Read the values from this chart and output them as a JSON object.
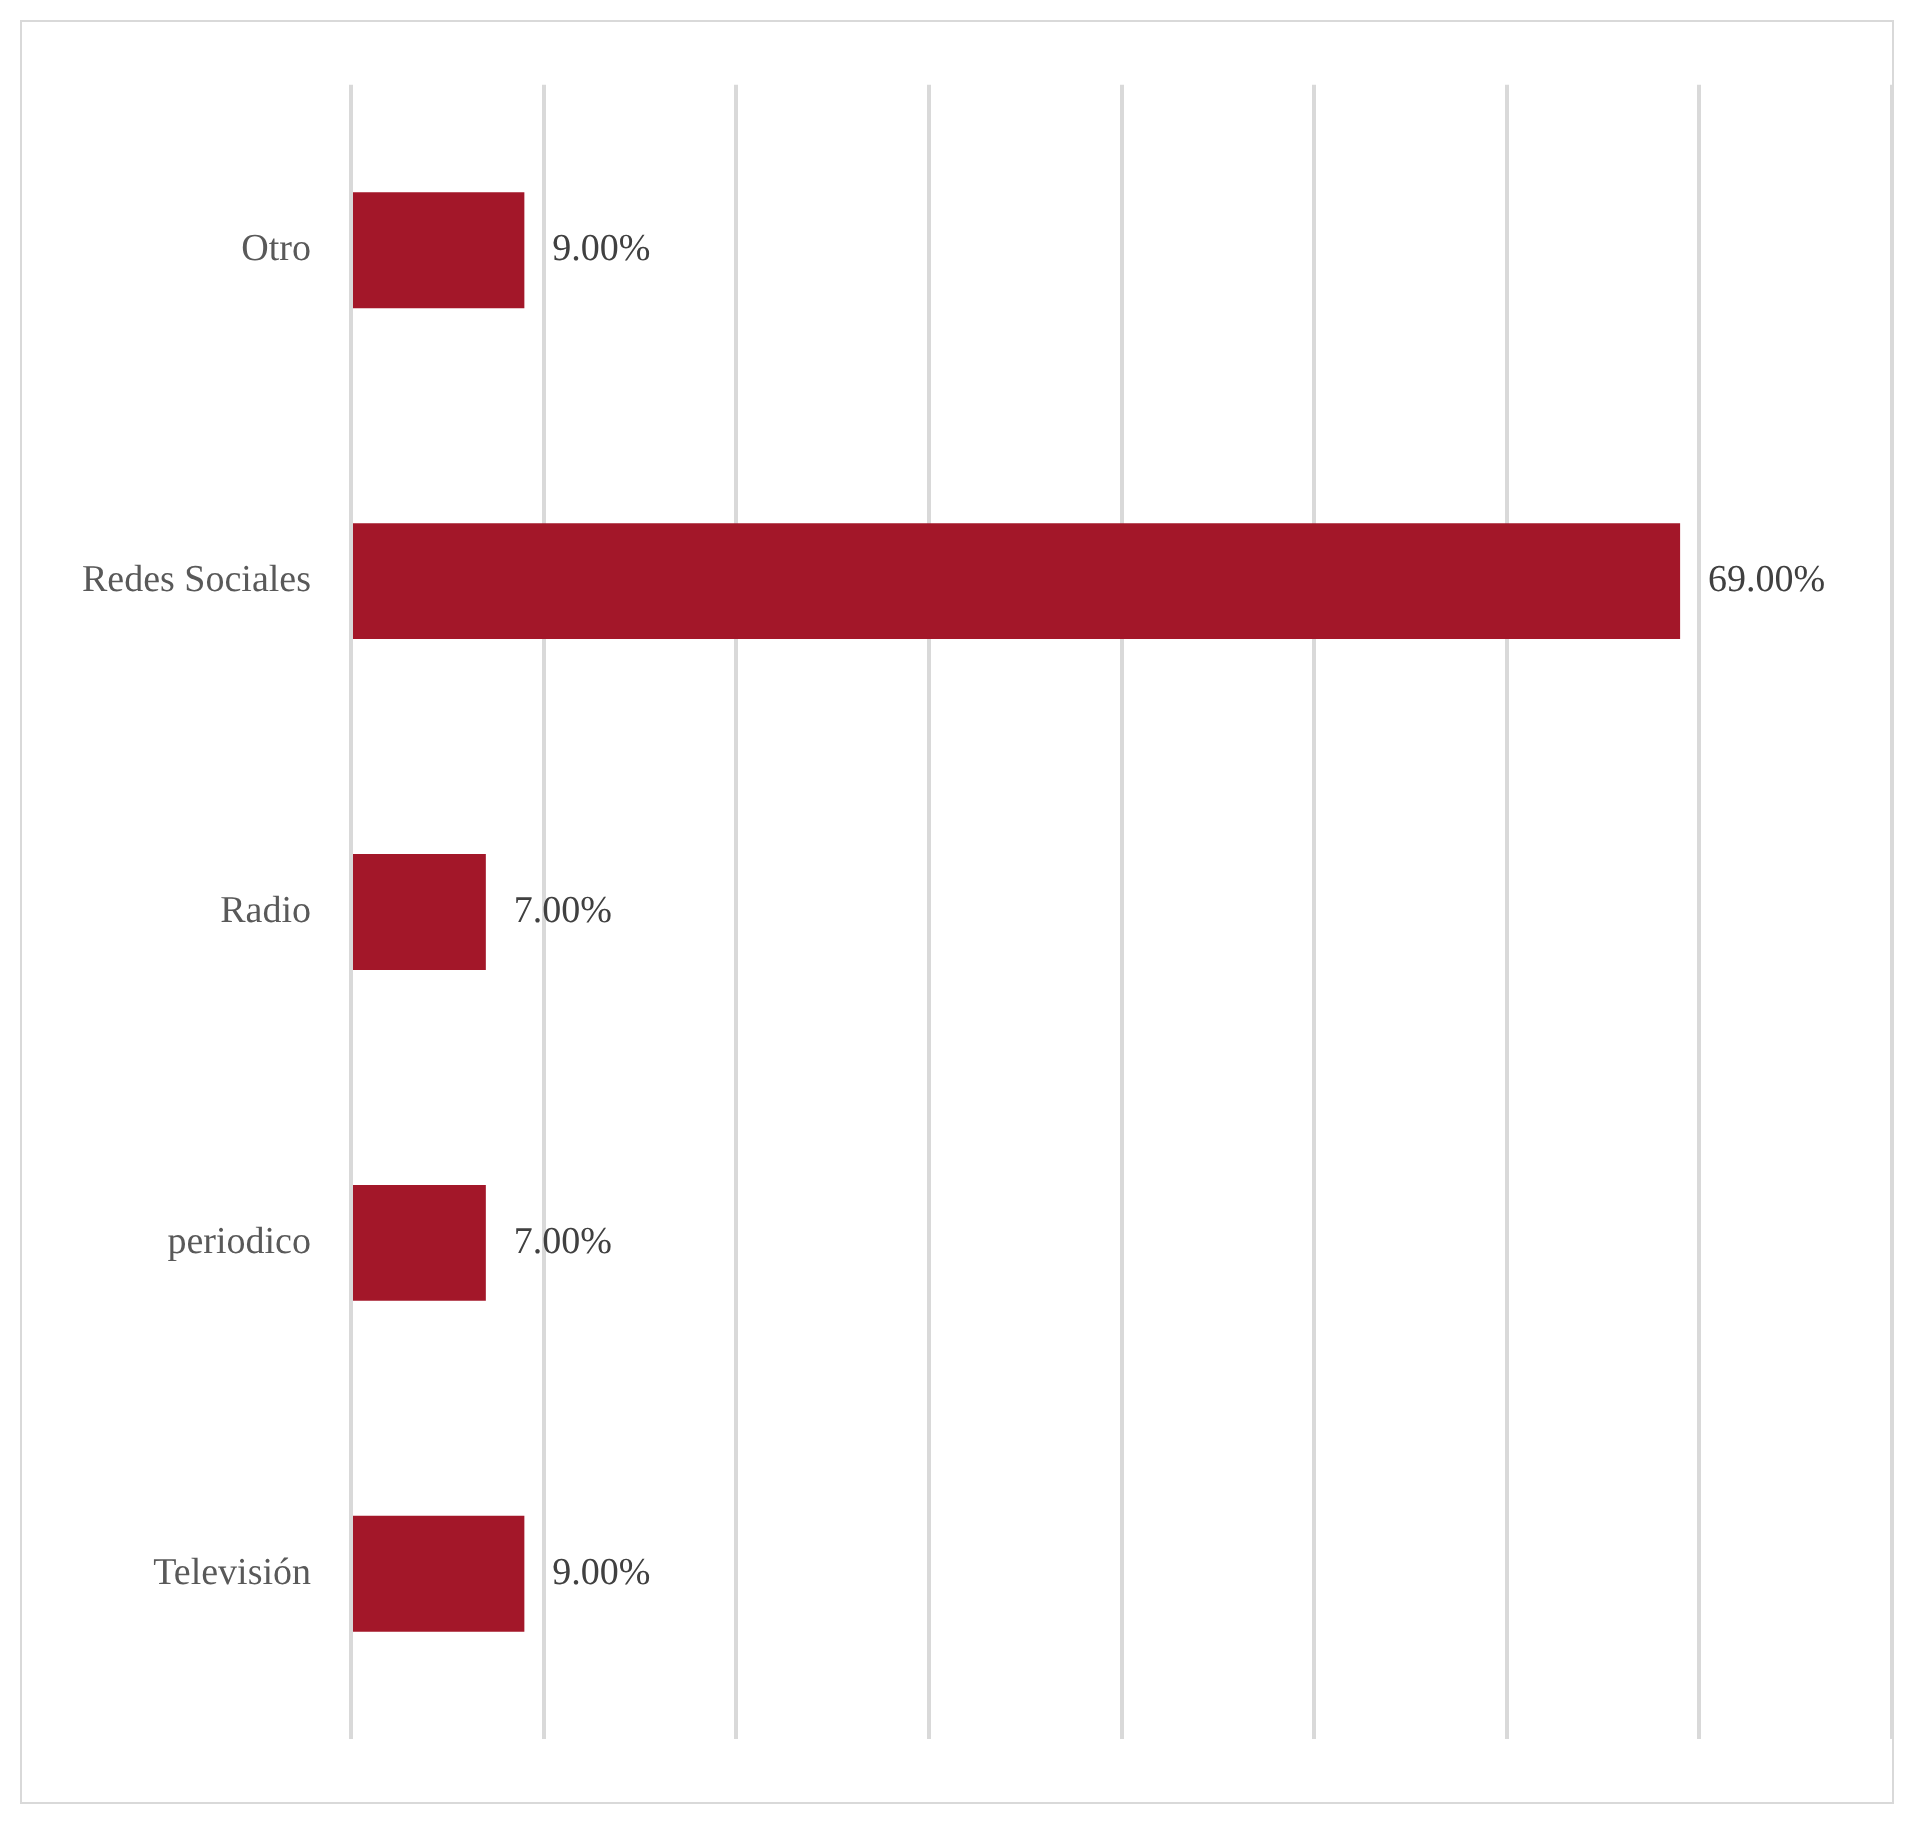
{
  "chart_data": {
    "type": "bar",
    "orientation": "horizontal",
    "categories": [
      "Otro",
      "Redes Sociales",
      "Radio",
      "periodico",
      "Televisión"
    ],
    "values": [
      9,
      69,
      7,
      7,
      9
    ],
    "value_labels": [
      "9.00%",
      "69.00%",
      "7.00%",
      "7.00%",
      "9.00%"
    ],
    "color": "#a31729",
    "xlim": [
      0,
      80
    ],
    "xticks": [
      {
        "value": 0,
        "label": null
      },
      {
        "value": 10,
        "label": null
      },
      {
        "value": 20,
        "label": null
      },
      {
        "value": 30,
        "label": null
      },
      {
        "value": 40,
        "label": null
      },
      {
        "value": 50,
        "label": null
      },
      {
        "value": 60,
        "label": null
      },
      {
        "value": 70,
        "label": null
      },
      {
        "value": 80,
        "label": null
      }
    ],
    "grid": "x",
    "tick_labels": "y",
    "legend": false
  }
}
